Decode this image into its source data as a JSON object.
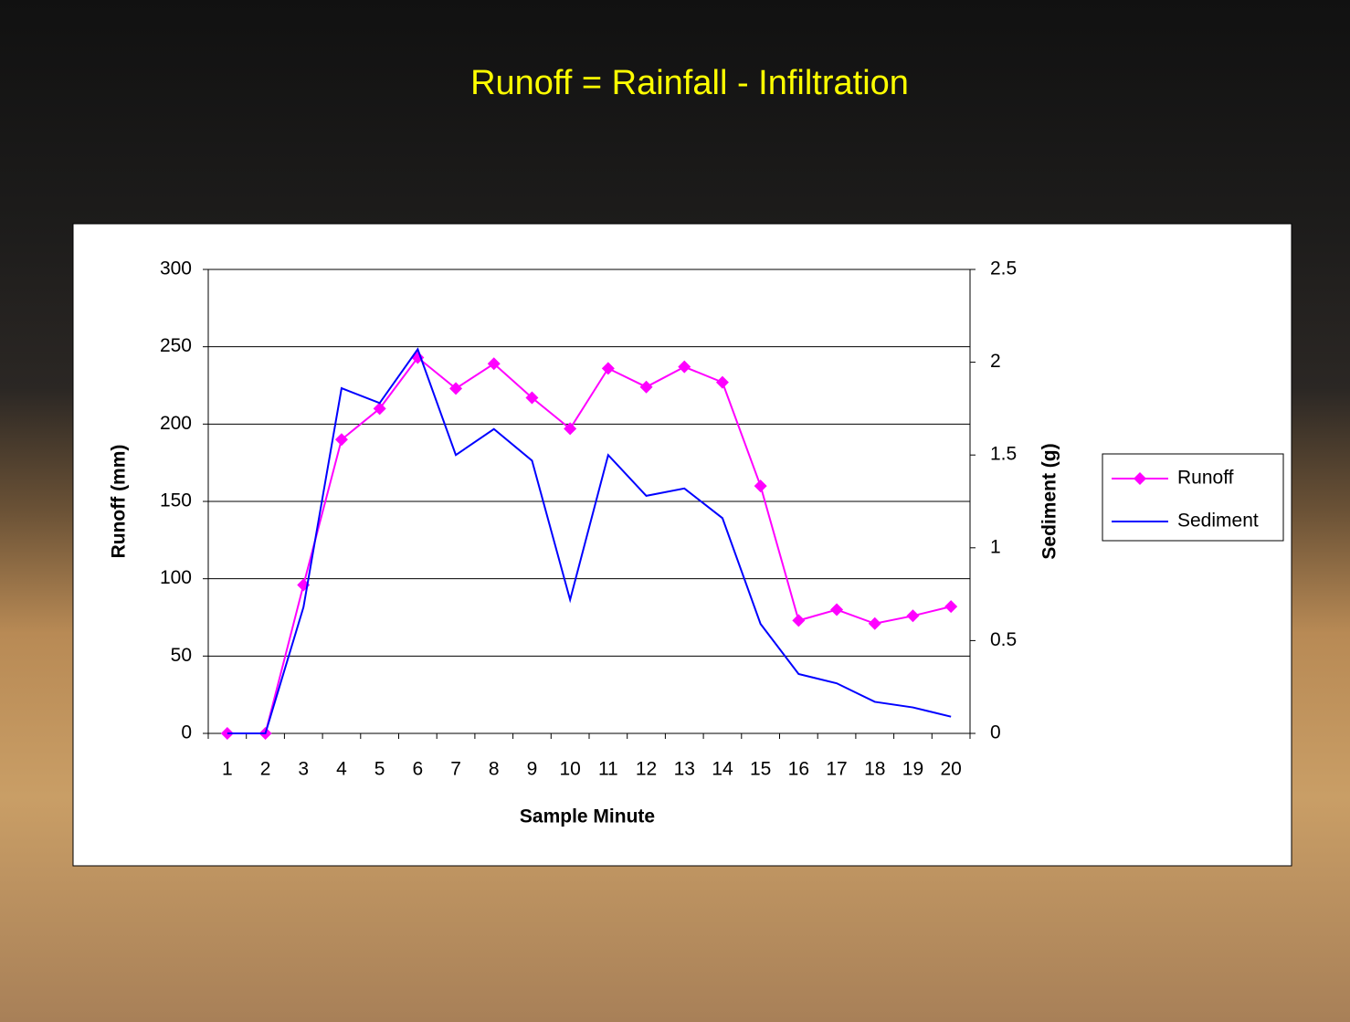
{
  "chart_data": {
    "type": "line",
    "title": "Runoff = Rainfall - Infiltration",
    "x_label": "Sample Minute",
    "y_label": "Runoff (mm)",
    "y2_label": "Sediment (g)",
    "categories": [
      "1",
      "2",
      "3",
      "4",
      "5",
      "6",
      "7",
      "8",
      "9",
      "10",
      "11",
      "12",
      "13",
      "14",
      "15",
      "16",
      "17",
      "18",
      "19",
      "20"
    ],
    "series": [
      {
        "name": "Runoff",
        "color": "#ff00ff",
        "marker": "diamond",
        "values": [
          0,
          0,
          96,
          190,
          210,
          243,
          223,
          239,
          217,
          197,
          236,
          224,
          237,
          227,
          160,
          73,
          80,
          71,
          76,
          82
        ]
      },
      {
        "name": "Sediment",
        "color": "#0000ff",
        "axis": "y2",
        "values": [
          0,
          0,
          0.68,
          1.86,
          1.78,
          2.07,
          1.5,
          1.64,
          1.47,
          0.72,
          1.5,
          1.28,
          1.32,
          1.16,
          0.59,
          0.32,
          0.27,
          0.17,
          0.14,
          0.09
        ]
      }
    ],
    "ylim": [
      0,
      300
    ],
    "yticks": [
      0,
      50,
      100,
      150,
      200,
      250,
      300
    ],
    "y2lim": [
      0,
      2.5
    ],
    "y2ticks": [
      0,
      0.5,
      1,
      1.5,
      2,
      2.5
    ],
    "grid": true,
    "legend": "right"
  }
}
